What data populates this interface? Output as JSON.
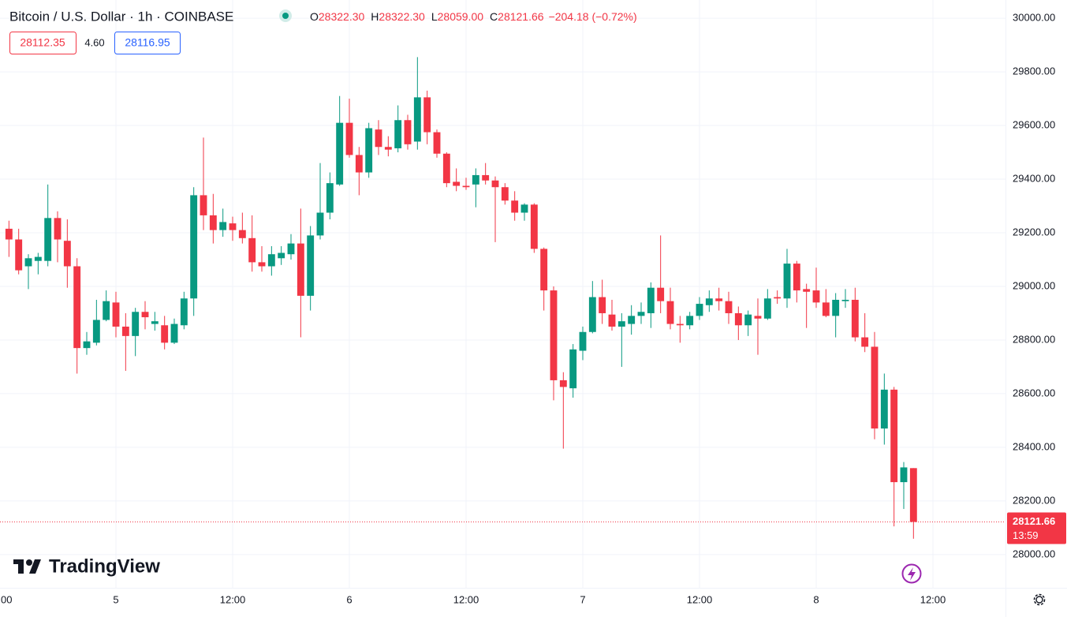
{
  "header": {
    "title": "Bitcoin / U.S. Dollar · 1h · COINBASE",
    "ohlc": [
      {
        "key": "O",
        "value": "28322.30"
      },
      {
        "key": "H",
        "value": "28322.30"
      },
      {
        "key": "L",
        "value": "28059.00"
      },
      {
        "key": "C",
        "value": "28121.66"
      }
    ],
    "change": "−204.18 (−0.72%)",
    "bid": "28112.35",
    "spread": "4.60",
    "ask": "28116.95"
  },
  "logo": "TradingView",
  "chart_data": {
    "type": "candlestick",
    "up_color": "#089981",
    "down_color": "#f23645",
    "grid": true,
    "x": [
      -11,
      -10,
      -9,
      -8,
      -7,
      -6,
      -5,
      -4,
      -3,
      -2,
      -1,
      0,
      1,
      2,
      3,
      4,
      5,
      6,
      7,
      8,
      9,
      10,
      11,
      12,
      13,
      14,
      15,
      16,
      17,
      18,
      19,
      20,
      21,
      22,
      23,
      24,
      25,
      26,
      27,
      28,
      29,
      30,
      31,
      32,
      33,
      34,
      35,
      36,
      37,
      38,
      39,
      40,
      41,
      42,
      43,
      44,
      45,
      46,
      47,
      48,
      49,
      50,
      51,
      52,
      53,
      54,
      55,
      56,
      57,
      58,
      59,
      60,
      61,
      62,
      63,
      64,
      65,
      66,
      67,
      68,
      69,
      70,
      71,
      72,
      73,
      74,
      75,
      76,
      77,
      78,
      79,
      80,
      81,
      82
    ],
    "open": [
      29215,
      29175,
      29075,
      29095,
      29095,
      29255,
      29170,
      29075,
      28770,
      28790,
      28875,
      28940,
      28850,
      28815,
      28905,
      28860,
      28855,
      28790,
      28855,
      28955,
      29340,
      29265,
      29210,
      29235,
      29210,
      29180,
      29090,
      29075,
      29105,
      29120,
      29160,
      28965,
      29190,
      29275,
      29380,
      29610,
      29490,
      29425,
      29585,
      29520,
      29515,
      29620,
      29540,
      29705,
      29575,
      29495,
      29390,
      29375,
      29380,
      29415,
      29395,
      29370,
      29320,
      29275,
      29305,
      29140,
      28985,
      28650,
      28620,
      28760,
      28830,
      28960,
      28895,
      28850,
      28860,
      28890,
      28900,
      28995,
      28945,
      28860,
      28855,
      28890,
      28930,
      28955,
      28945,
      28900,
      28855,
      28890,
      28880,
      28960,
      28955,
      29085,
      28990,
      28985,
      28940,
      28890,
      28945,
      28950,
      28810,
      28775,
      28470,
      28615,
      28270,
      28322.3
    ],
    "high": [
      29245,
      29215,
      29120,
      29125,
      29380,
      29280,
      29250,
      29105,
      28830,
      28950,
      28985,
      28980,
      28900,
      28920,
      28945,
      28905,
      28890,
      28880,
      28980,
      29370,
      29555,
      29345,
      29290,
      29260,
      29275,
      29265,
      29150,
      29150,
      29150,
      29195,
      29290,
      29225,
      29460,
      29425,
      29710,
      29700,
      29520,
      29610,
      29620,
      29560,
      29675,
      29640,
      29855,
      29730,
      29585,
      29500,
      29440,
      29405,
      29440,
      29460,
      29410,
      29385,
      29355,
      29310,
      29310,
      29145,
      29000,
      28680,
      28785,
      28850,
      29020,
      29025,
      28950,
      28900,
      28930,
      28940,
      29015,
      29190,
      28995,
      28890,
      28905,
      28960,
      28985,
      28995,
      28980,
      28925,
      28910,
      28955,
      28990,
      28985,
      29140,
      29095,
      29010,
      29070,
      28990,
      28975,
      28990,
      28995,
      28900,
      28830,
      28675,
      28625,
      28345,
      28322.3
    ],
    "low": [
      29110,
      29045,
      28990,
      29045,
      29075,
      29090,
      28995,
      28675,
      28745,
      28780,
      28870,
      28810,
      28685,
      28740,
      28840,
      28835,
      28765,
      28785,
      28840,
      28890,
      29210,
      29160,
      29185,
      29170,
      29160,
      29055,
      29055,
      29040,
      29080,
      29100,
      28810,
      28910,
      29175,
      29250,
      29375,
      29480,
      29340,
      29405,
      29490,
      29485,
      29500,
      29510,
      29510,
      29530,
      29480,
      29370,
      29355,
      29360,
      29295,
      29380,
      29165,
      29305,
      29245,
      29245,
      29125,
      28910,
      28575,
      28395,
      28585,
      28725,
      28825,
      28860,
      28835,
      28700,
      28820,
      28860,
      28845,
      28900,
      28840,
      28790,
      28840,
      28875,
      28905,
      28910,
      28860,
      28800,
      28815,
      28745,
      28875,
      28935,
      28920,
      28940,
      28845,
      28920,
      28885,
      28810,
      28920,
      28795,
      28755,
      28430,
      28410,
      28105,
      28170,
      28059
    ],
    "close": [
      29175,
      29060,
      29105,
      29110,
      29255,
      29175,
      29075,
      28770,
      28795,
      28875,
      28945,
      28850,
      28815,
      28905,
      28885,
      28870,
      28790,
      28860,
      28955,
      29340,
      29265,
      29210,
      29240,
      29210,
      29180,
      29090,
      29075,
      29120,
      29125,
      29160,
      28965,
      29190,
      29275,
      29385,
      29610,
      29490,
      29425,
      29590,
      29520,
      29510,
      29620,
      29530,
      29705,
      29575,
      29495,
      29385,
      29375,
      29370,
      29415,
      29395,
      29370,
      29320,
      29275,
      29305,
      29140,
      28985,
      28650,
      28625,
      28765,
      28830,
      28960,
      28900,
      28850,
      28870,
      28890,
      28905,
      28995,
      28945,
      28860,
      28855,
      28890,
      28935,
      28955,
      28945,
      28900,
      28855,
      28895,
      28880,
      28955,
      28955,
      29085,
      28985,
      28980,
      28940,
      28890,
      28950,
      28950,
      28810,
      28775,
      28470,
      28615,
      28270,
      28325,
      28121.66
    ],
    "xlim": [
      -11.92,
      91.46
    ],
    "xticks": [
      {
        "value": -12,
        "label": "00"
      },
      {
        "value": 0,
        "label": "5"
      },
      {
        "value": 12,
        "label": "12:00"
      },
      {
        "value": 24,
        "label": "6"
      },
      {
        "value": 36,
        "label": "12:00"
      },
      {
        "value": 48,
        "label": "7"
      },
      {
        "value": 60,
        "label": "12:00"
      },
      {
        "value": 72,
        "label": "8"
      },
      {
        "value": 84,
        "label": "12:00"
      }
    ],
    "ylim": [
      27876,
      30068
    ],
    "yticks": [
      {
        "value": 28000,
        "label": "28000.00"
      },
      {
        "value": 28200,
        "label": "28200.00"
      },
      {
        "value": 28400,
        "label": "28400.00"
      },
      {
        "value": 28600,
        "label": "28600.00"
      },
      {
        "value": 28800,
        "label": "28800.00"
      },
      {
        "value": 29000,
        "label": "29000.00"
      },
      {
        "value": 29200,
        "label": "29200.00"
      },
      {
        "value": 29400,
        "label": "29400.00"
      },
      {
        "value": 29600,
        "label": "29600.00"
      },
      {
        "value": 29800,
        "label": "29800.00"
      },
      {
        "value": 30000,
        "label": "30000.00"
      }
    ],
    "last_price": {
      "value": 28121.66,
      "label": "28121.66"
    },
    "countdown": "13:59"
  }
}
